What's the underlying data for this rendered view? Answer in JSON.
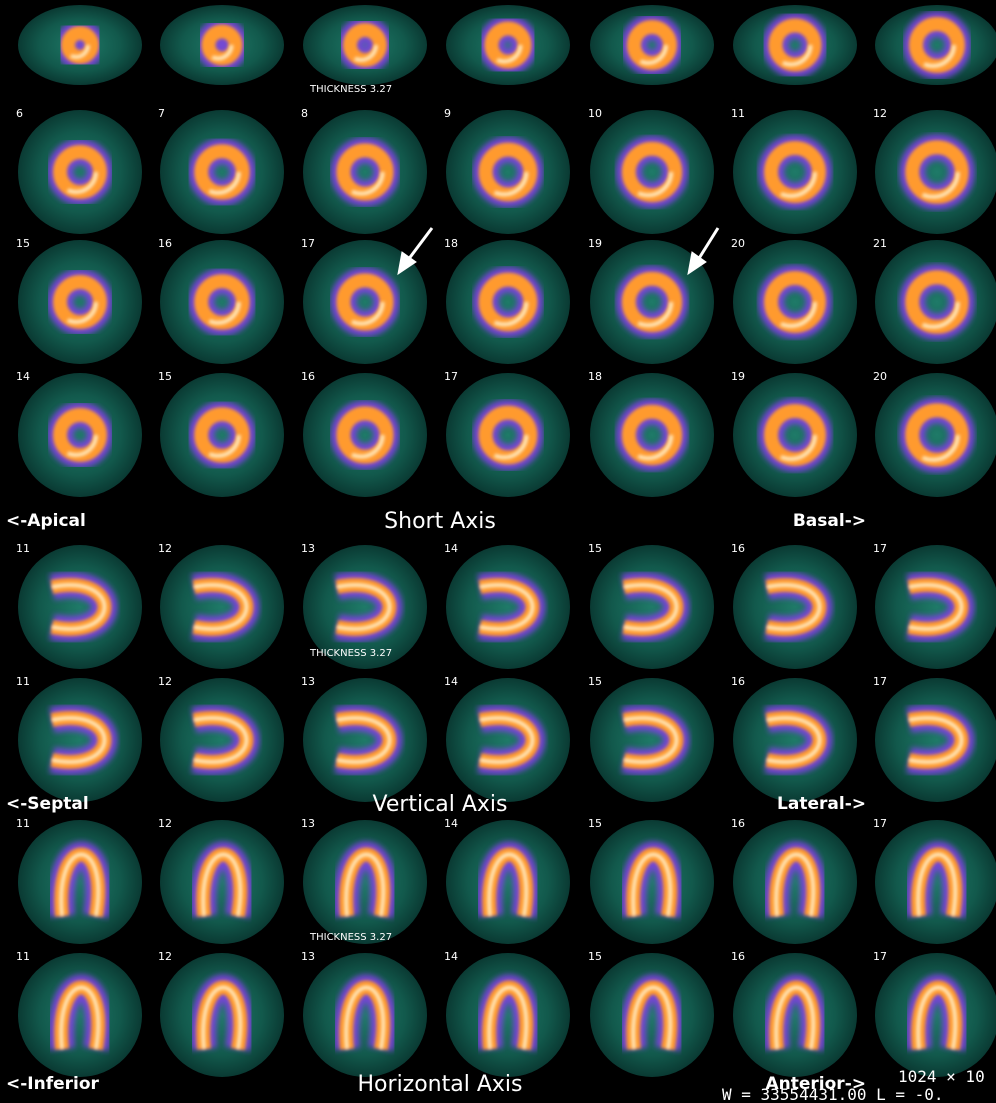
{
  "sections": [
    {
      "title": "Short Axis",
      "left": "<-Apical",
      "right": "Basal->",
      "thickness": "THICKNESS 3.27",
      "rows": [
        [
          null,
          null,
          null,
          null,
          null,
          null,
          null
        ],
        [
          6,
          7,
          8,
          9,
          10,
          11,
          12
        ],
        [
          15,
          16,
          17,
          18,
          19,
          20,
          21
        ],
        [
          14,
          15,
          16,
          17,
          18,
          19,
          20
        ]
      ]
    },
    {
      "title": "Vertical Axis",
      "left": "<-Septal",
      "right": "Lateral->",
      "thickness": "THICKNESS 3.27",
      "rows": [
        [
          11,
          12,
          13,
          14,
          15,
          16,
          17
        ],
        [
          11,
          12,
          13,
          14,
          15,
          16,
          17
        ]
      ]
    },
    {
      "title": "Horizontal Axis",
      "left": "<-Inferior",
      "right": "Anterior->",
      "thickness": "THICKNESS 3.27",
      "rows": [
        [
          11,
          12,
          13,
          14,
          15,
          16,
          17
        ],
        [
          11,
          12,
          13,
          14,
          15,
          16,
          17
        ]
      ]
    }
  ],
  "footer": {
    "size": "1024 × 10",
    "window": "W = 33554431.00  L = -0."
  }
}
